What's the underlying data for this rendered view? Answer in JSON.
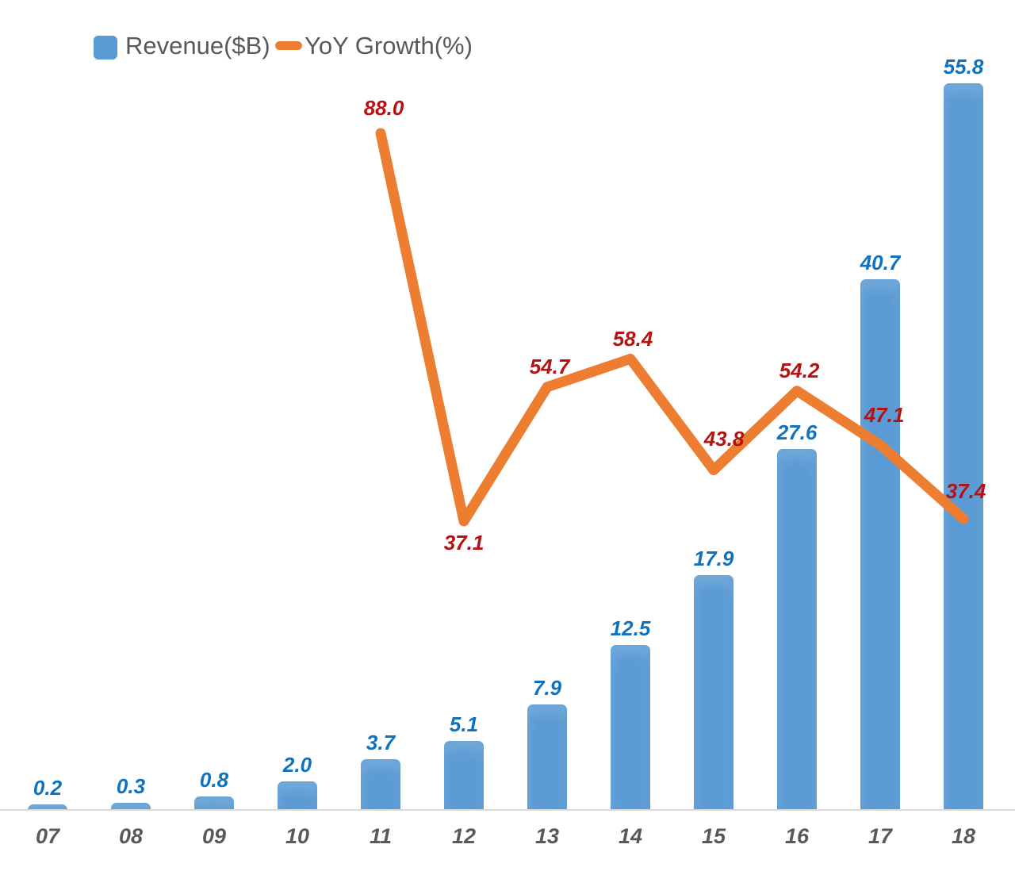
{
  "legend": {
    "revenue_label": "Revenue($B)",
    "growth_label": "YoY Growth(%)"
  },
  "colors": {
    "bar_fill": "#5B9BD5",
    "line_stroke": "#ED7D31",
    "revenue_label_text": "#0F72BE",
    "growth_label_text": "#B51212",
    "axis_text": "#595959",
    "axis_line": "#D9D9D9"
  },
  "chart_data": {
    "type": "bar",
    "subtype": "combo-bar-line",
    "categories": [
      "07",
      "08",
      "09",
      "10",
      "11",
      "12",
      "13",
      "14",
      "15",
      "16",
      "17",
      "18"
    ],
    "series": [
      {
        "name": "Revenue($B)",
        "type": "bar",
        "axis": "primary",
        "values": [
          0.2,
          0.3,
          0.8,
          2.0,
          3.7,
          5.1,
          7.9,
          12.5,
          17.9,
          27.6,
          40.7,
          55.8
        ]
      },
      {
        "name": "YoY Growth(%)",
        "type": "line",
        "axis": "secondary",
        "values": [
          null,
          null,
          null,
          null,
          88.0,
          37.1,
          54.7,
          58.4,
          43.8,
          54.2,
          47.1,
          37.4
        ]
      }
    ],
    "title": "",
    "xlabel": "",
    "ylabel": "",
    "legend_position": "top-left",
    "grid": false,
    "value_axes_hidden": true,
    "data_labels_shown": true,
    "primary_ylim_implied": [
      0,
      60
    ],
    "secondary_ylim_implied": [
      0,
      100
    ]
  }
}
